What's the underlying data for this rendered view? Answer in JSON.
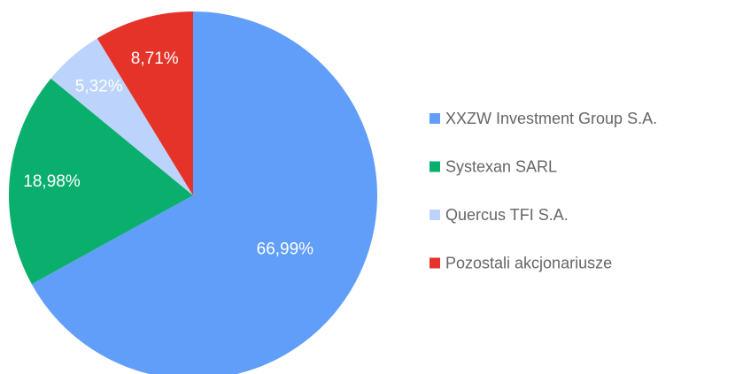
{
  "chart_data": {
    "type": "pie",
    "categories": [
      "XXZW Investment Group S.A.",
      "Systexan SARL",
      "Quercus TFI S.A.",
      "Pozostali akcjonariusze"
    ],
    "values": [
      66.99,
      18.98,
      5.32,
      8.71
    ],
    "value_labels": [
      "66,99%",
      "18,98%",
      "5,32%",
      "8,71%"
    ],
    "colors": [
      "#619ef9",
      "#0aaf6e",
      "#bcd4fb",
      "#e5332a"
    ],
    "legend": "right"
  }
}
